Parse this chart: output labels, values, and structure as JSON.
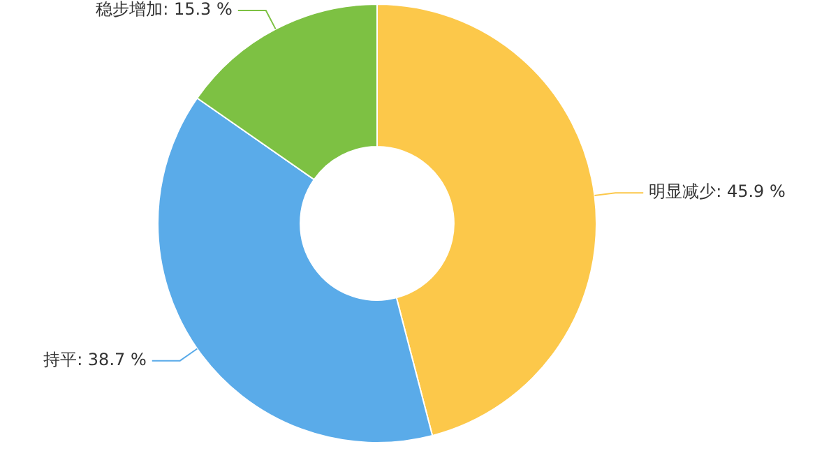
{
  "chart_data": {
    "type": "donut",
    "categories": [
      "明显减少",
      "持平",
      "稳步增加"
    ],
    "values": [
      45.9,
      38.7,
      15.3
    ],
    "colors": [
      "#fcc84a",
      "#5aabe9",
      "#7dc143"
    ],
    "value_labels": [
      ": 45.9 %",
      ": 38.7 %",
      ": 15.3 %"
    ]
  }
}
